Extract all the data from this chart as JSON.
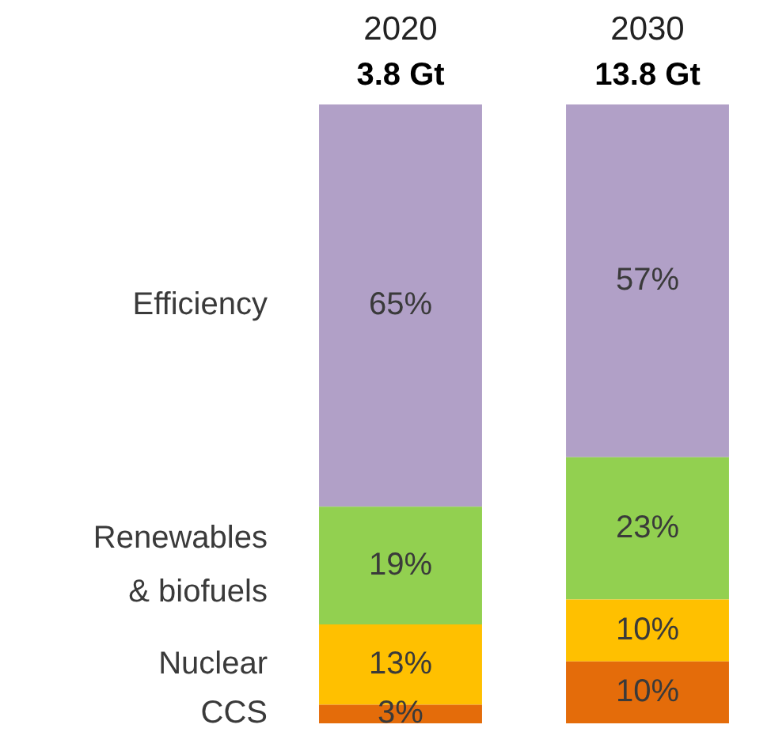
{
  "chart_data": {
    "type": "bar",
    "stacked": true,
    "categories": [
      "2020",
      "2030"
    ],
    "ylim": [
      0,
      100
    ],
    "tick_labels": "x",
    "grid": false,
    "legend": false,
    "annotations": [
      {
        "text": "3.8 Gt",
        "x": "2020",
        "y": 100
      },
      {
        "text": "13.8 Gt",
        "x": "2030",
        "y": 100
      }
    ],
    "series": [
      {
        "name": "CCS",
        "color": "#e46c0a",
        "values": [
          3,
          10
        ],
        "value_labels": [
          "3%",
          "10%"
        ]
      },
      {
        "name": "Nuclear",
        "color": "#ffc000",
        "values": [
          13,
          10
        ],
        "value_labels": [
          "13%",
          "10%"
        ]
      },
      {
        "name": "Renewables & biofuels",
        "color": "#92d050",
        "values": [
          19,
          23
        ],
        "value_labels": [
          "19%",
          "23%"
        ]
      },
      {
        "name": "Efficiency",
        "color": "#b1a0c7",
        "values": [
          65,
          57
        ],
        "value_labels": [
          "65%",
          "57%"
        ]
      }
    ]
  }
}
